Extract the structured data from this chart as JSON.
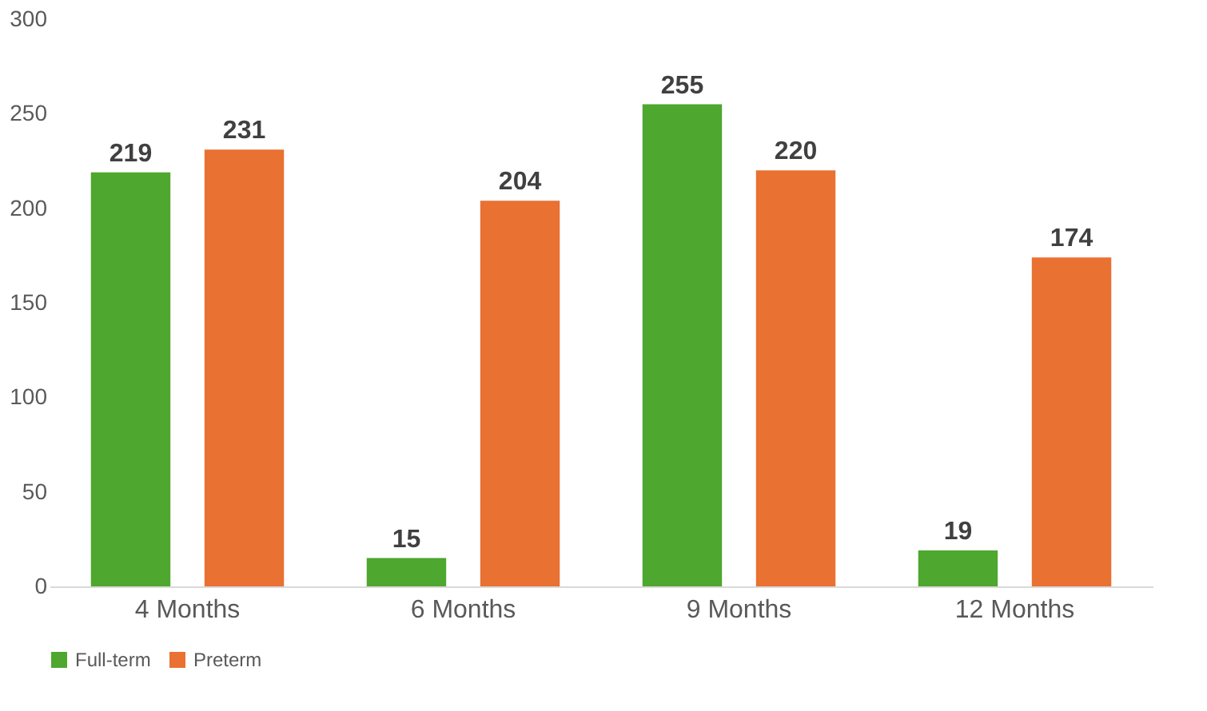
{
  "chart_data": {
    "type": "bar",
    "categories": [
      "4 Months",
      "6 Months",
      "9 Months",
      "12 Months"
    ],
    "series": [
      {
        "name": "Full-term",
        "color": "#4ea72e",
        "values": [
          219,
          15,
          255,
          19
        ]
      },
      {
        "name": "Preterm",
        "color": "#e97132",
        "values": [
          231,
          204,
          220,
          174
        ]
      }
    ],
    "ylim": [
      0,
      300
    ],
    "yticks": [
      0,
      50,
      100,
      150,
      200,
      250,
      300
    ],
    "grid": false,
    "legend": "bottom",
    "data_labels": true
  }
}
